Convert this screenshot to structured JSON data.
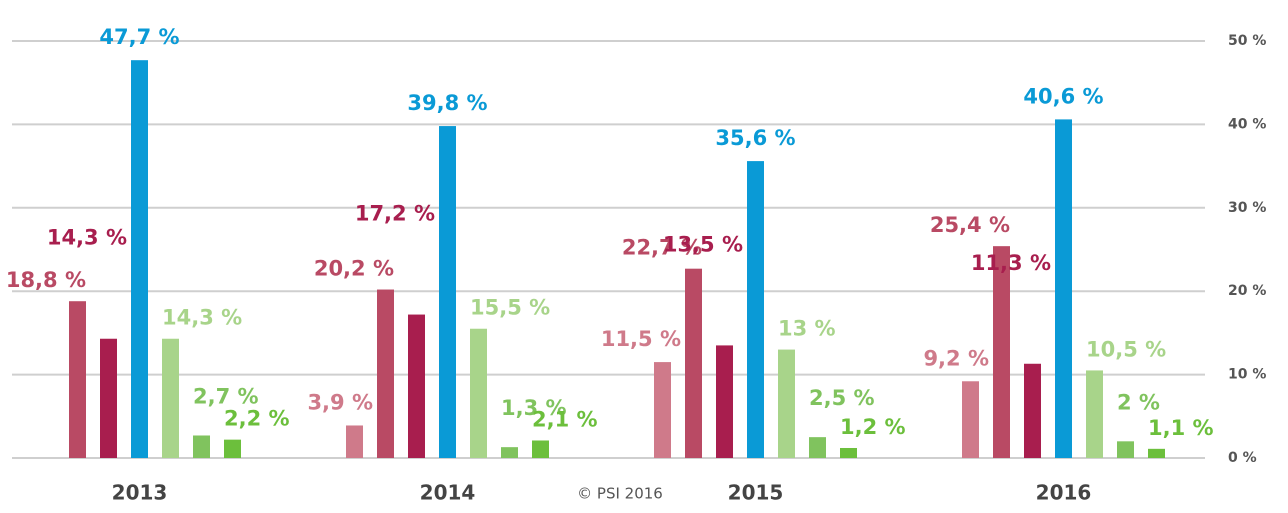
{
  "chart_data": {
    "type": "bar",
    "categories": [
      "2013",
      "2014",
      "2015",
      "2016"
    ],
    "series": [
      {
        "color": "#cf7a8a",
        "values": [
          null,
          3.9,
          11.5,
          9.2
        ],
        "value_labels": [
          null,
          "3,9 %",
          "11,5 %",
          "9,2 %"
        ]
      },
      {
        "color": "#b94a64",
        "values": [
          18.8,
          20.2,
          22.7,
          25.4
        ],
        "value_labels": [
          "18,8 %",
          "20,2 %",
          "22,7 %",
          "25,4 %"
        ]
      },
      {
        "color": "#a81e4e",
        "values": [
          14.3,
          17.2,
          13.5,
          11.3
        ],
        "value_labels": [
          "14,3 %",
          "17,2 %",
          "13,5 %",
          "11,3 %"
        ]
      },
      {
        "color": "#0a9ad6",
        "values": [
          47.7,
          39.8,
          35.6,
          40.6
        ],
        "value_labels": [
          "47,7 %",
          "39,8 %",
          "35,6 %",
          "40,6 %"
        ]
      },
      {
        "color": "#a8d48a",
        "values": [
          14.3,
          15.5,
          13,
          10.5
        ],
        "value_labels": [
          "14,3 %",
          "15,5 %",
          "13 %",
          "10,5 %"
        ]
      },
      {
        "color": "#80c35e",
        "values": [
          2.7,
          1.3,
          2.5,
          2
        ],
        "value_labels": [
          "2,7 %",
          "1,3 %",
          "2,5 %",
          "2 %"
        ]
      },
      {
        "color": "#6cbf3c",
        "values": [
          2.2,
          2.1,
          1.2,
          1.1
        ],
        "value_labels": [
          "2,2 %",
          "2,1 %",
          "1,2 %",
          "1,1 %"
        ]
      }
    ],
    "ylim": [
      0,
      50
    ],
    "yticks": [
      {
        "value": 0,
        "label": "0 %"
      },
      {
        "value": 10,
        "label": "10 %"
      },
      {
        "value": 20,
        "label": "20 %"
      },
      {
        "value": 30,
        "label": "30 %"
      },
      {
        "value": 40,
        "label": "40 %"
      },
      {
        "value": 50,
        "label": "50 %"
      }
    ],
    "grid": true,
    "footer": "© PSI 2016"
  }
}
